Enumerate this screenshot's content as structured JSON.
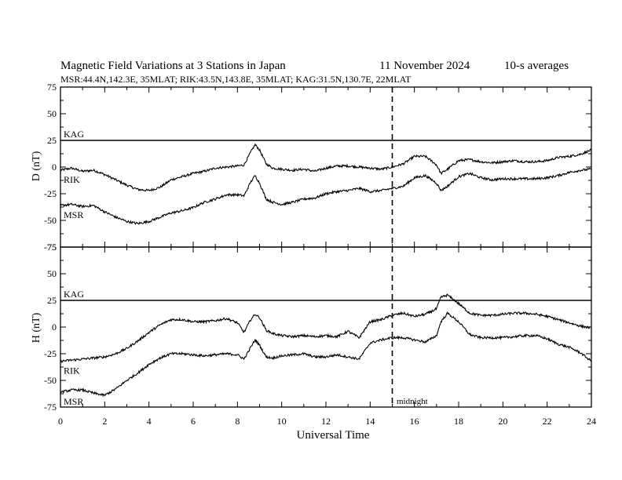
{
  "chart_data": {
    "type": "line",
    "title": "Magnetic Field Variations at 3 Stations in Japan",
    "date": "11 November 2024",
    "averaging": "10-s averages",
    "subtitle": "MSR:44.4N,142.3E, 35MLAT;  RIK:43.5N,143.8E, 35MLAT;  KAG:31.5N,130.7E, 22MLAT",
    "xlabel": "Universal Time",
    "xlim": [
      0,
      24
    ],
    "xticks": [
      0,
      2,
      4,
      6,
      8,
      10,
      12,
      14,
      16,
      18,
      20,
      22,
      24
    ],
    "yticks": [
      75,
      50,
      25,
      0,
      -25,
      -50,
      -75
    ],
    "midnight_ut": 15,
    "midnight_label": "midnight",
    "panels": [
      {
        "ylabel": "D (nT)",
        "ylim": [
          -75,
          75
        ],
        "reference_line": {
          "label": "KAG",
          "y": 25
        },
        "series": [
          {
            "name": "RIK",
            "x": [
              0,
              0.5,
              1,
              1.5,
              2,
              2.5,
              3,
              3.5,
              4,
              4.5,
              5,
              5.5,
              6,
              6.5,
              7,
              7.5,
              8,
              8.3,
              8.6,
              8.8,
              9,
              9.3,
              9.6,
              10,
              10.5,
              11,
              11.5,
              12,
              12.5,
              13,
              13.5,
              14,
              14.5,
              15,
              15.5,
              16,
              16.5,
              17,
              17.2,
              17.5,
              18,
              18.5,
              19,
              19.5,
              20,
              20.5,
              21,
              21.5,
              22,
              22.5,
              23,
              23.5,
              24
            ],
            "y": [
              -3,
              -1,
              -4,
              -3,
              -7,
              -12,
              -17,
              -21,
              -22,
              -19,
              -12,
              -9,
              -6,
              -4,
              -1,
              0,
              1,
              2,
              14,
              21,
              16,
              3,
              -1,
              -2,
              -3,
              -2,
              -4,
              -1,
              1,
              1,
              0,
              -1,
              -2,
              0,
              3,
              10,
              10,
              2,
              -6,
              -2,
              6,
              7,
              5,
              4,
              5,
              6,
              5,
              5,
              6,
              9,
              10,
              12,
              16
            ]
          },
          {
            "name": "MSR",
            "x": [
              0,
              0.5,
              1,
              1.5,
              2,
              2.5,
              3,
              3.5,
              4,
              4.5,
              5,
              5.5,
              6,
              6.5,
              7,
              7.5,
              8,
              8.3,
              8.6,
              8.8,
              9,
              9.3,
              9.6,
              10,
              10.5,
              11,
              11.5,
              12,
              12.5,
              13,
              13.5,
              14,
              14.5,
              15,
              15.5,
              16,
              16.5,
              17,
              17.2,
              17.5,
              18,
              18.5,
              19,
              19.5,
              20,
              20.5,
              21,
              21.5,
              22,
              22.5,
              23,
              23.5,
              24
            ],
            "y": [
              -36,
              -35,
              -37,
              -36,
              -42,
              -47,
              -51,
              -53,
              -51,
              -47,
              -43,
              -41,
              -38,
              -33,
              -30,
              -26,
              -26,
              -27,
              -14,
              -8,
              -15,
              -30,
              -33,
              -35,
              -33,
              -30,
              -29,
              -25,
              -23,
              -22,
              -20,
              -23,
              -22,
              -20,
              -18,
              -10,
              -8,
              -15,
              -22,
              -18,
              -9,
              -6,
              -10,
              -12,
              -11,
              -11,
              -11,
              -11,
              -10,
              -8,
              -5,
              -3,
              -2
            ]
          }
        ]
      },
      {
        "ylabel": "H (nT)",
        "ylim": [
          -75,
          75
        ],
        "reference_line": {
          "label": "KAG",
          "y": 25
        },
        "series": [
          {
            "name": "RIK",
            "x": [
              0,
              0.5,
              1,
              1.5,
              2,
              2.5,
              3,
              3.5,
              4,
              4.5,
              5,
              5.5,
              6,
              6.5,
              7,
              7.5,
              8,
              8.3,
              8.6,
              8.8,
              9,
              9.3,
              9.6,
              10,
              10.5,
              11,
              11.5,
              12,
              12.5,
              13,
              13.5,
              14,
              14.5,
              15,
              15.5,
              16,
              16.5,
              17,
              17.2,
              17.5,
              18,
              18.5,
              19,
              19.5,
              20,
              20.5,
              21,
              21.5,
              22,
              22.5,
              23,
              23.5,
              24
            ],
            "y": [
              -32,
              -31,
              -30,
              -29,
              -28,
              -25,
              -20,
              -13,
              -5,
              2,
              7,
              7,
              5,
              5,
              6,
              8,
              4,
              -5,
              7,
              12,
              9,
              -3,
              -6,
              -8,
              -9,
              -8,
              -9,
              -8,
              -9,
              -4,
              -10,
              5,
              7,
              11,
              13,
              10,
              12,
              17,
              28,
              30,
              22,
              13,
              11,
              11,
              12,
              13,
              13,
              12,
              10,
              7,
              4,
              1,
              -1
            ]
          },
          {
            "name": "MSR",
            "x": [
              0,
              0.5,
              1,
              1.5,
              2,
              2.5,
              3,
              3.5,
              4,
              4.5,
              5,
              5.5,
              6,
              6.5,
              7,
              7.5,
              8,
              8.3,
              8.6,
              8.8,
              9,
              9.3,
              9.6,
              10,
              10.5,
              11,
              11.5,
              12,
              12.5,
              13,
              13.5,
              14,
              14.5,
              15,
              15.5,
              16,
              16.5,
              17,
              17.2,
              17.5,
              18,
              18.5,
              19,
              19.5,
              20,
              20.5,
              21,
              21.5,
              22,
              22.5,
              23,
              23.5,
              24
            ],
            "y": [
              -61,
              -59,
              -59,
              -62,
              -64,
              -58,
              -50,
              -43,
              -35,
              -29,
              -25,
              -25,
              -26,
              -27,
              -26,
              -25,
              -26,
              -30,
              -19,
              -12,
              -17,
              -28,
              -29,
              -27,
              -26,
              -25,
              -28,
              -28,
              -26,
              -28,
              -30,
              -15,
              -12,
              -10,
              -10,
              -12,
              -14,
              -8,
              5,
              13,
              5,
              -7,
              -10,
              -10,
              -10,
              -9,
              -8,
              -8,
              -11,
              -16,
              -19,
              -24,
              -32
            ]
          }
        ]
      }
    ]
  }
}
